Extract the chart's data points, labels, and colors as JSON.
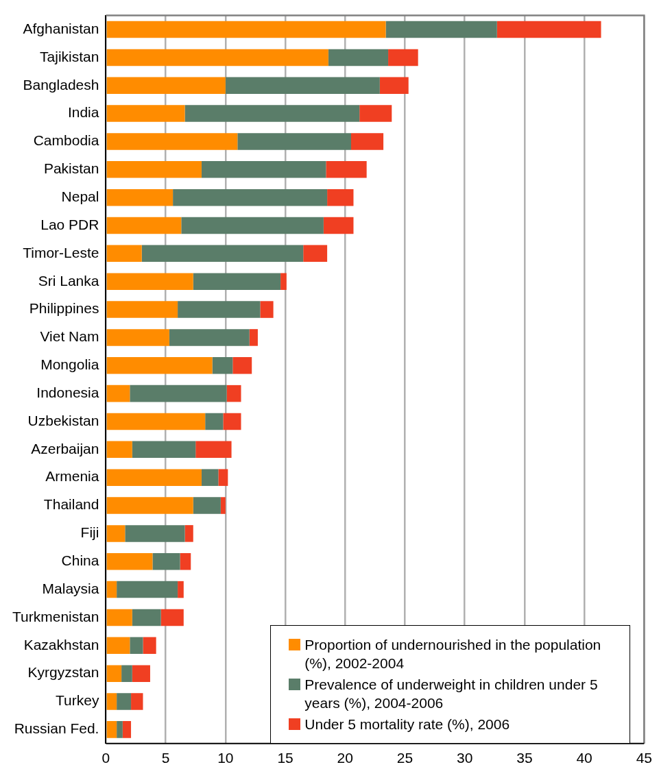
{
  "chart_data": {
    "type": "bar",
    "orientation": "horizontal",
    "stacked": true,
    "grid": "x",
    "legend": "bottom right",
    "categories": [
      "Afghanistan",
      "Tajikistan",
      "Bangladesh",
      "India",
      "Cambodia",
      "Pakistan",
      "Nepal",
      "Lao PDR",
      "Timor-Leste",
      "Sri Lanka",
      "Philippines",
      "Viet Nam",
      "Mongolia",
      "Indonesia",
      "Uzbekistan",
      "Azerbaijan",
      "Armenia",
      "Thailand",
      "Fiji",
      "China",
      "Malaysia",
      "Turkmenistan",
      "Kazakhstan",
      "Kyrgyzstan",
      "Turkey",
      "Russian Fed."
    ],
    "xlim": [
      0,
      45
    ],
    "xticks": [
      0,
      5,
      10,
      15,
      20,
      25,
      30,
      35,
      40,
      45
    ],
    "series": [
      {
        "name": "Proportion of undernourished in the population (%), 2002-2004",
        "color": "#ff8c00",
        "values": [
          23.4,
          18.6,
          10.0,
          6.6,
          11.0,
          8.0,
          5.6,
          6.3,
          3.0,
          7.3,
          6.0,
          5.3,
          8.9,
          2.0,
          8.3,
          2.2,
          8.0,
          7.3,
          1.6,
          3.9,
          0.9,
          2.2,
          2.0,
          1.3,
          0.9,
          0.9
        ]
      },
      {
        "name": "Prevalence of underweight in children under 5 years (%), 2004-2006",
        "color": "#5a7d69",
        "values": [
          9.3,
          5.0,
          12.9,
          14.6,
          9.5,
          10.4,
          12.9,
          11.9,
          13.5,
          7.3,
          6.9,
          6.7,
          1.7,
          8.1,
          1.5,
          5.3,
          1.4,
          2.3,
          5.0,
          2.3,
          5.1,
          2.4,
          1.1,
          0.9,
          1.2,
          0.5
        ]
      },
      {
        "name": "Under 5 mortality rate (%), 2006",
        "color": "#f03f22",
        "values": [
          8.7,
          2.5,
          2.4,
          2.7,
          2.7,
          3.4,
          2.2,
          2.5,
          2.0,
          0.5,
          1.1,
          0.7,
          1.6,
          1.2,
          1.5,
          3.0,
          0.8,
          0.4,
          0.7,
          0.9,
          0.5,
          1.9,
          1.1,
          1.5,
          1.0,
          0.7
        ]
      }
    ]
  }
}
